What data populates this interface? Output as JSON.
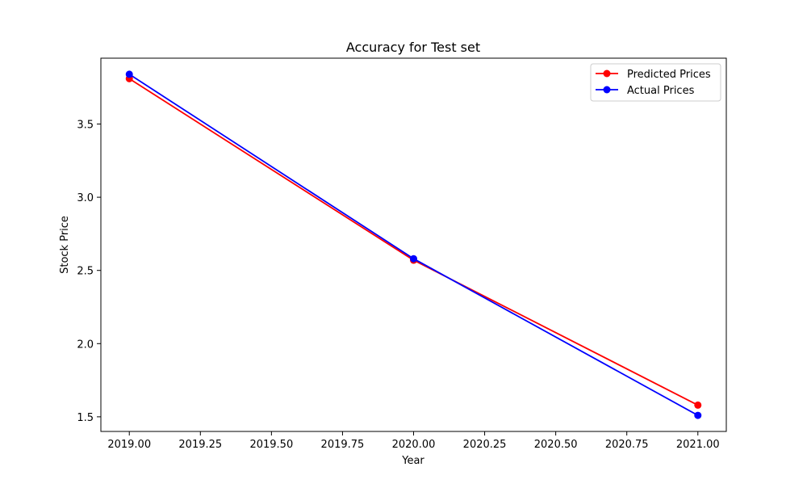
{
  "chart_data": {
    "type": "line",
    "title": "Accuracy for Test set",
    "xlabel": "Year",
    "ylabel": "Stock Price",
    "x": [
      2019,
      2020,
      2021
    ],
    "series": [
      {
        "name": "Predicted Prices",
        "color": "#ff0000",
        "marker": "circle",
        "values": [
          3.81,
          2.57,
          1.58
        ]
      },
      {
        "name": "Actual Prices",
        "color": "#0000ff",
        "marker": "circle",
        "values": [
          3.84,
          2.58,
          1.51
        ]
      }
    ],
    "xlim": [
      2018.9,
      2021.1
    ],
    "ylim": [
      1.4,
      3.95
    ],
    "xticks": [
      2019.0,
      2019.25,
      2019.5,
      2019.75,
      2020.0,
      2020.25,
      2020.5,
      2020.75,
      2021.0
    ],
    "xtick_labels": [
      "2019.00",
      "2019.25",
      "2019.50",
      "2019.75",
      "2020.00",
      "2020.25",
      "2020.50",
      "2020.75",
      "2021.00"
    ],
    "yticks": [
      1.5,
      2.0,
      2.5,
      3.0,
      3.5
    ],
    "ytick_labels": [
      "1.5",
      "2.0",
      "2.5",
      "3.0",
      "3.5"
    ],
    "grid": false,
    "legend_position": "top-right"
  }
}
